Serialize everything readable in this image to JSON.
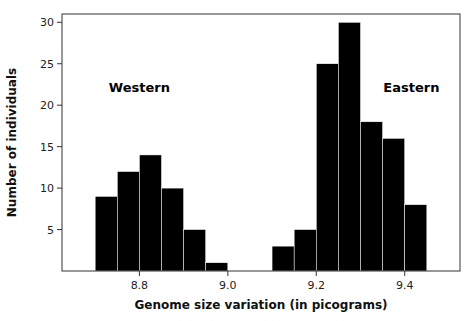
{
  "chart_data": {
    "type": "bar",
    "x": [
      8.7,
      8.75,
      8.8,
      8.85,
      8.9,
      8.95,
      9.1,
      9.15,
      9.2,
      9.25,
      9.3,
      9.35,
      9.4,
      9.45
    ],
    "values": [
      9,
      12,
      14,
      10,
      5,
      1,
      3,
      5,
      25,
      30,
      18,
      16,
      8,
      0
    ],
    "bin_width": 0.05,
    "color": "#000000",
    "xlim": [
      8.625,
      9.525
    ],
    "ylim": [
      0,
      31
    ],
    "xticks": [
      8.8,
      {
        "value": 9.0,
        "label": "9.0"
      },
      9.2,
      9.4
    ],
    "yticks": [
      5,
      10,
      15,
      20,
      25,
      30
    ],
    "xlabel": "Genome size variation (in picograms)",
    "ylabel": "Number of individuals",
    "annotations": [
      {
        "text": "Western",
        "x": 8.8,
        "y": 22
      },
      {
        "text": "Eastern",
        "x": 9.415,
        "y": 22
      }
    ]
  }
}
